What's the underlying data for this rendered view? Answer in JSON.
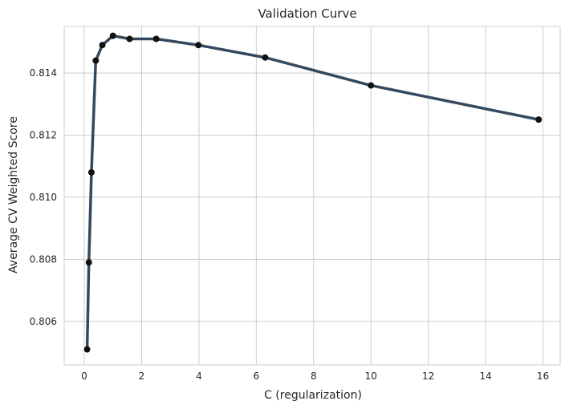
{
  "chart_data": {
    "type": "line",
    "title": "Validation Curve",
    "xlabel": "C (regularization)",
    "ylabel": "Average CV Weighted Score",
    "xlim": [
      -0.7,
      16.6
    ],
    "ylim": [
      0.8046,
      0.8155
    ],
    "xticks": [
      0,
      2,
      4,
      6,
      8,
      10,
      12,
      14,
      16
    ],
    "yticks": [
      0.806,
      0.808,
      0.81,
      0.812,
      0.814
    ],
    "ytick_labels": [
      "0.806",
      "0.808",
      "0.810",
      "0.812",
      "0.814"
    ],
    "grid": true,
    "series": [
      {
        "x": [
          0.1,
          0.16,
          0.25,
          0.4,
          0.63,
          1.0,
          1.58,
          2.51,
          3.98,
          6.31,
          10.0,
          15.85
        ],
        "y": [
          0.8051,
          0.8079,
          0.8108,
          0.8144,
          0.8149,
          0.8152,
          0.8151,
          0.8151,
          0.8149,
          0.8145,
          0.8136,
          0.8125
        ],
        "line_color": "#34495e",
        "marker_color": "#111111"
      }
    ]
  }
}
